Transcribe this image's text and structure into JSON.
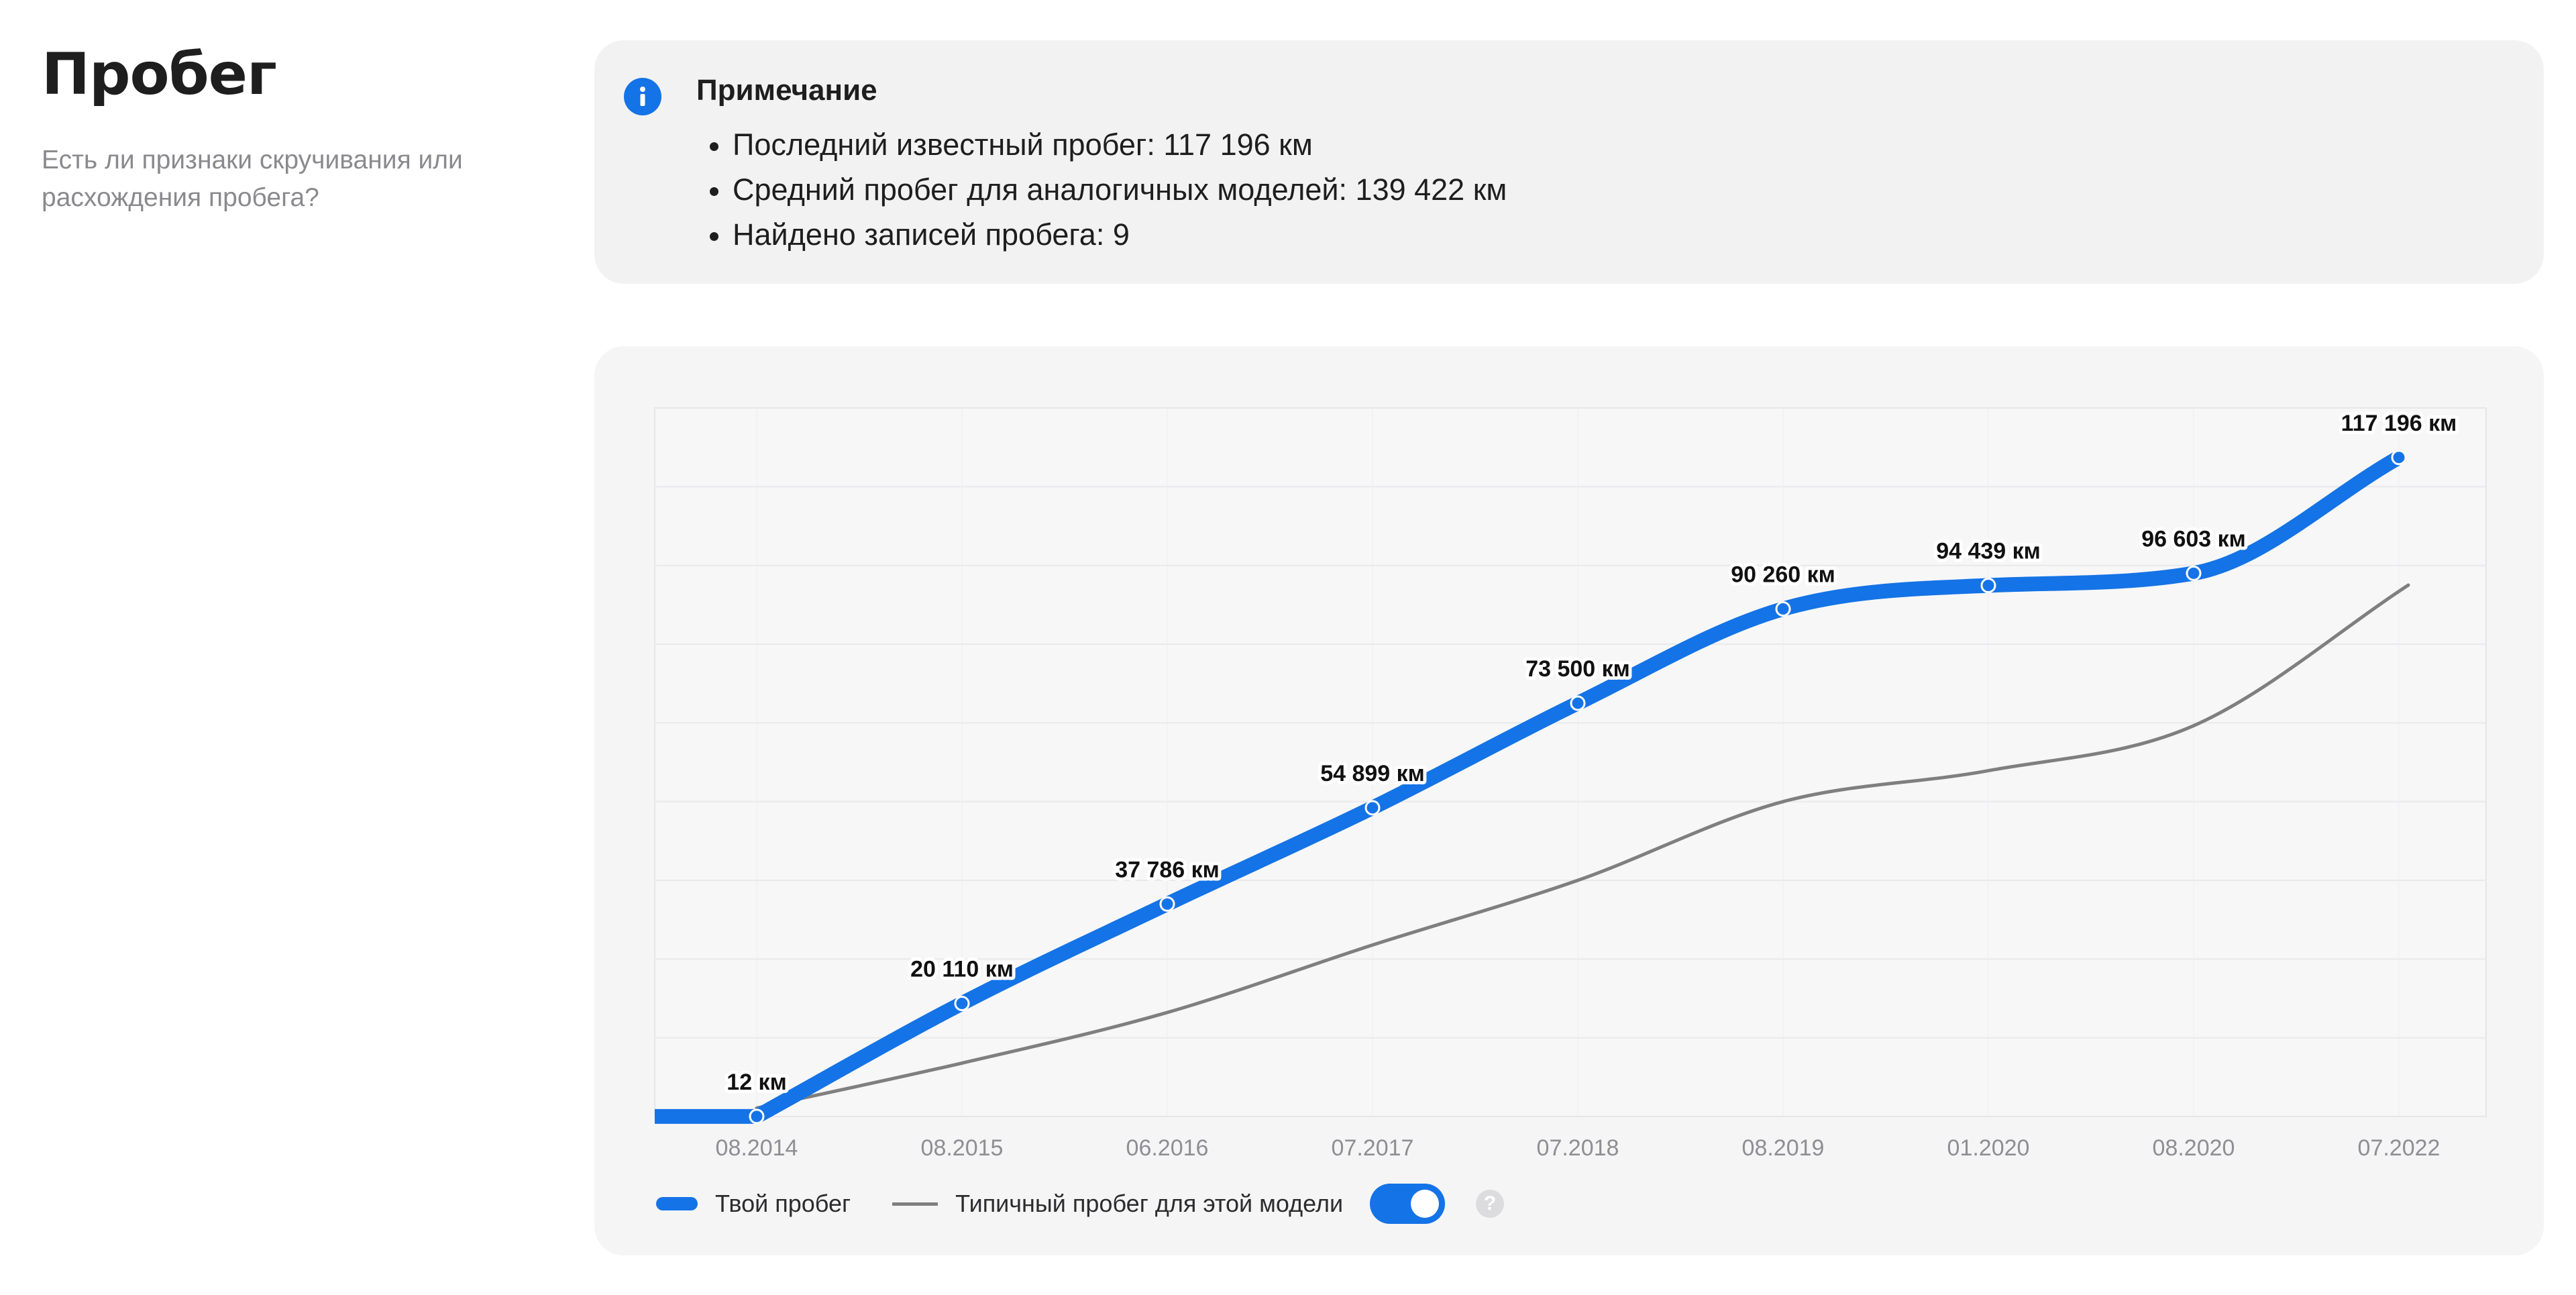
{
  "header": {
    "title": "Пробег",
    "subtitle": "Есть ли признаки скручивания или расхождения пробега?"
  },
  "note": {
    "icon": "info-icon",
    "title": "Примечание",
    "items": [
      "Последний известный пробег: 117 196 км",
      "Средний пробег для аналогичных моделей: 139 422 км",
      "Найдено записей пробега: 9"
    ]
  },
  "chart_data": {
    "type": "line",
    "grid": true,
    "xlabel": "",
    "ylabel": "",
    "ylim": [
      0,
      126000
    ],
    "categories": [
      "08.2014",
      "08.2015",
      "06.2016",
      "07.2017",
      "07.2018",
      "08.2019",
      "01.2020",
      "08.2020",
      "07.2022"
    ],
    "series": [
      {
        "name": "Твой пробег",
        "color": "#1473e6",
        "values": [
          12,
          20110,
          37786,
          54899,
          73500,
          90260,
          94439,
          96603,
          117196
        ],
        "labels": [
          "12 км",
          "20 110 км",
          "37 786 км",
          "54 899 км",
          "73 500 км",
          "90 260 км",
          "94 439 км",
          "96 603 км",
          "117 196 км"
        ]
      },
      {
        "name": "Типичный пробег для этой модели",
        "color": "#7f7f7f",
        "values": [
          1500,
          9500,
          18500,
          30500,
          42000,
          56000,
          61500,
          69500,
          94500
        ]
      }
    ]
  },
  "legend": {
    "user_label": "Твой пробег",
    "typical_label": "Типичный пробег для этой модели",
    "toggle_on": true,
    "help_symbol": "?"
  },
  "colors": {
    "accent": "#1473e6",
    "typical": "#7f7f7f",
    "card_bg": "#f2f2f3"
  }
}
